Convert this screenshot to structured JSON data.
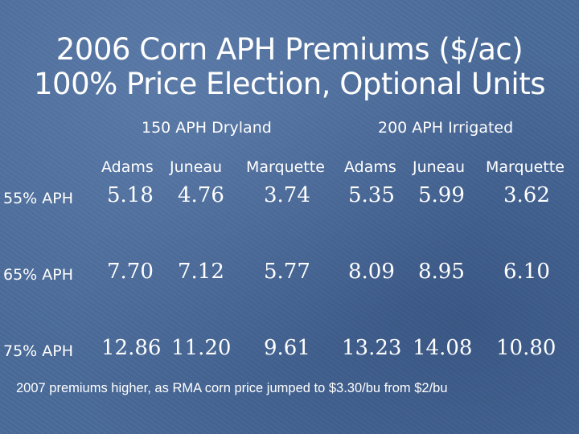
{
  "title": {
    "line1": "2006 Corn APH Premiums ($/ac)",
    "line2": "100% Price Election, Optional Units"
  },
  "groups": [
    "150 APH Dryland",
    "200 APH Irrigated"
  ],
  "columns": [
    "Adams",
    "Juneau",
    "Marquette",
    "Adams",
    "Juneau",
    "Marquette"
  ],
  "rows": [
    {
      "label": "55% APH",
      "values": [
        "5.18",
        "4.76",
        "3.74",
        "5.35",
        "5.99",
        "3.62"
      ]
    },
    {
      "label": "65% APH",
      "values": [
        "7.70",
        "7.12",
        "5.77",
        "8.09",
        "8.95",
        "6.10"
      ]
    },
    {
      "label": "75% APH",
      "values": [
        "12.86",
        "11.20",
        "9.61",
        "13.23",
        "14.08",
        "10.80"
      ]
    }
  ],
  "footnote": "2007 premiums higher, as RMA corn price jumped to $3.30/bu from $2/bu"
}
